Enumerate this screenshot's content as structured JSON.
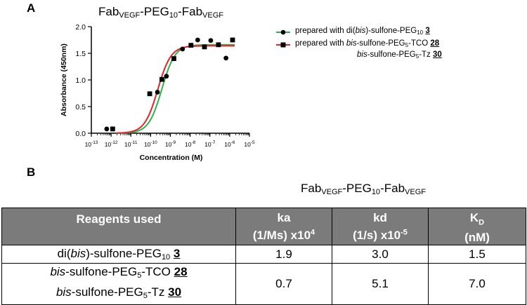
{
  "panel_a": {
    "label": "A",
    "title": {
      "main1": "Fab",
      "sub1": "VEGF",
      "main2": "-PEG",
      "sub2": "10",
      "main3": "-Fab",
      "sub3": "VEGF"
    }
  },
  "panel_b": {
    "label": "B",
    "title": {
      "main1": "Fab",
      "sub1": "VEGF",
      "main2": "-PEG",
      "sub2": "10",
      "main3": "-Fab",
      "sub3": "VEGF"
    }
  },
  "legend": {
    "green_text": "prepared with di(",
    "green_ital": "bis",
    "green_text2": ")-sulfone-PEG",
    "green_sub": "10",
    "green_ref": "3",
    "red_text": "prepared with ",
    "red_ital": "bis",
    "red_text2": "-sulfone-PEG",
    "red_sub": "5",
    "red_text3": "-TCO",
    "red_ref": "28",
    "red2_ital": "bis",
    "red2_text": "-sulfone-PEG",
    "red2_sub": "5",
    "red2_text2": "-Tz",
    "red2_ref": "30"
  },
  "chart_data": {
    "type": "scatter",
    "title": "FabVEGF-PEG10-FabVEGF",
    "xlabel": "Concentration (M)",
    "ylabel": "Absorbance (450nm)",
    "x_scale": "log",
    "xlim": [
      1e-13,
      1e-05
    ],
    "ylim": [
      0,
      2.0
    ],
    "x_tick_labels": [
      "10-13",
      "10-12",
      "10-11",
      "10-10",
      "10-9",
      "10-8",
      "10-7",
      "10-6",
      "10-5"
    ],
    "y_ticks": [
      "0.0",
      "0.5",
      "1.0",
      "1.5",
      "2.0"
    ],
    "series": [
      {
        "name": "prepared with di(bis)-sulfone-PEG10 3",
        "color": "#2db34a",
        "marker": "circle",
        "points": [
          [
            6e-13,
            0.08
          ],
          [
            2.2e-10,
            0.77
          ],
          [
            6.3e-10,
            1.07
          ],
          [
            4.1e-09,
            1.58
          ],
          [
            2.4e-08,
            1.75
          ],
          [
            1.1e-07,
            1.74
          ],
          [
            6.5e-07,
            1.41
          ]
        ],
        "fit": {
          "bottom": 0.0,
          "top": 1.66,
          "ec50": 3.7e-10,
          "hill": 1.3
        }
      },
      {
        "name": "prepared with bis-sulfone-PEG5-TCO 28 bis-sulfone-PEG5-Tz 30",
        "color": "#e8202a",
        "marker": "square",
        "points": [
          [
            1.2e-12,
            0.08
          ],
          [
            9e-11,
            0.74
          ],
          [
            3.7e-10,
            1.01
          ],
          [
            1.5e-09,
            1.4
          ],
          [
            1.1e-08,
            1.65
          ],
          [
            5.3e-08,
            1.62
          ],
          [
            2.7e-07,
            1.66
          ],
          [
            1.4e-06,
            1.75
          ]
        ],
        "fit": {
          "bottom": 0.0,
          "top": 1.64,
          "ec50": 2.3e-10,
          "hill": 1.3
        }
      }
    ]
  },
  "table": {
    "headers": {
      "reagents": "Reagents used",
      "ka_1": "ka",
      "ka_2": "(1/Ms) x10",
      "ka_exp": "4",
      "kd_1": "kd",
      "kd_2": "(1/s) x10",
      "kd_exp": "-5",
      "KD_1": "K",
      "KD_sub": "D",
      "KD_2": "(nM)"
    },
    "rows": [
      {
        "reagent": {
          "a": "di(",
          "a_ital": "bis",
          "b": ")-sulfone-PEG",
          "b_sub": "10",
          "ref": "3"
        },
        "ka": "1.9",
        "kd": "3.0",
        "KD": "1.5"
      },
      {
        "reagent": {
          "l1_ital": "bis",
          "l1_a": "-sulfone-PEG",
          "l1_sub": "5",
          "l1_b": "-TCO",
          "l1_ref": "28",
          "l2_ital": "bis",
          "l2_a": "-sulfone-PEG",
          "l2_sub": "5",
          "l2_b": "-Tz",
          "l2_ref": "30"
        },
        "ka": "0.7",
        "kd": "5.1",
        "KD": "7.0"
      }
    ]
  }
}
